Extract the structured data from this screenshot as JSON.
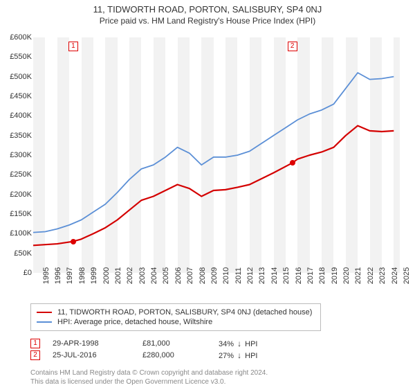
{
  "title": "11, TIDWORTH ROAD, PORTON, SALISBURY, SP4 0NJ",
  "subtitle": "Price paid vs. HM Land Registry's House Price Index (HPI)",
  "chart": {
    "type": "line",
    "background_color_odd": "#f2f2f2",
    "background_color_even": "#ffffff",
    "x_years": [
      1995,
      1996,
      1997,
      1998,
      1999,
      2000,
      2001,
      2002,
      2003,
      2004,
      2005,
      2006,
      2007,
      2008,
      2009,
      2010,
      2011,
      2012,
      2013,
      2014,
      2015,
      2016,
      2017,
      2018,
      2019,
      2020,
      2021,
      2022,
      2023,
      2024,
      2025
    ],
    "xlim_start": 1995,
    "xlim_end": 2025.5,
    "ylim": [
      0,
      600
    ],
    "ytick_step": 50,
    "yticks": [
      "£0",
      "£50K",
      "£100K",
      "£150K",
      "£200K",
      "£250K",
      "£300K",
      "£350K",
      "£400K",
      "£450K",
      "£500K",
      "£550K",
      "£600K"
    ],
    "series": [
      {
        "name": "property",
        "color": "#d40000",
        "width": 2.2,
        "points": [
          [
            1995,
            70
          ],
          [
            1996,
            72
          ],
          [
            1997,
            74
          ],
          [
            1998.3,
            80
          ],
          [
            1999,
            86
          ],
          [
            2000,
            100
          ],
          [
            2001,
            115
          ],
          [
            2002,
            135
          ],
          [
            2003,
            160
          ],
          [
            2004,
            185
          ],
          [
            2005,
            195
          ],
          [
            2006,
            210
          ],
          [
            2007,
            225
          ],
          [
            2008,
            215
          ],
          [
            2009,
            195
          ],
          [
            2010,
            210
          ],
          [
            2011,
            212
          ],
          [
            2012,
            218
          ],
          [
            2013,
            225
          ],
          [
            2014,
            240
          ],
          [
            2015,
            255
          ],
          [
            2016.55,
            280
          ],
          [
            2017,
            290
          ],
          [
            2018,
            300
          ],
          [
            2019,
            308
          ],
          [
            2020,
            320
          ],
          [
            2021,
            350
          ],
          [
            2022,
            375
          ],
          [
            2023,
            362
          ],
          [
            2024,
            360
          ],
          [
            2025,
            362
          ]
        ]
      },
      {
        "name": "hpi",
        "color": "#5b8fd6",
        "width": 1.8,
        "points": [
          [
            1995,
            103
          ],
          [
            1996,
            105
          ],
          [
            1997,
            112
          ],
          [
            1998,
            122
          ],
          [
            1999,
            135
          ],
          [
            2000,
            155
          ],
          [
            2001,
            175
          ],
          [
            2002,
            205
          ],
          [
            2003,
            238
          ],
          [
            2004,
            265
          ],
          [
            2005,
            275
          ],
          [
            2006,
            295
          ],
          [
            2007,
            320
          ],
          [
            2008,
            305
          ],
          [
            2009,
            275
          ],
          [
            2010,
            295
          ],
          [
            2011,
            295
          ],
          [
            2012,
            300
          ],
          [
            2013,
            310
          ],
          [
            2014,
            330
          ],
          [
            2015,
            350
          ],
          [
            2016,
            370
          ],
          [
            2017,
            390
          ],
          [
            2018,
            405
          ],
          [
            2019,
            415
          ],
          [
            2020,
            430
          ],
          [
            2021,
            470
          ],
          [
            2022,
            510
          ],
          [
            2023,
            493
          ],
          [
            2024,
            495
          ],
          [
            2025,
            500
          ]
        ]
      }
    ],
    "markers": [
      {
        "id": "1",
        "year": 1998.33,
        "value": 80
      },
      {
        "id": "2",
        "year": 2016.56,
        "value": 280
      }
    ]
  },
  "legend": {
    "items": [
      {
        "color": "#d40000",
        "label": "11, TIDWORTH ROAD, PORTON, SALISBURY, SP4 0NJ (detached house)"
      },
      {
        "color": "#5b8fd6",
        "label": "HPI: Average price, detached house, Wiltshire"
      }
    ]
  },
  "transactions": [
    {
      "id": "1",
      "date": "29-APR-1998",
      "price": "£81,000",
      "pct": "34%",
      "suffix": "HPI"
    },
    {
      "id": "2",
      "date": "25-JUL-2016",
      "price": "£280,000",
      "pct": "27%",
      "suffix": "HPI"
    }
  ],
  "footer": {
    "line1": "Contains HM Land Registry data © Crown copyright and database right 2024.",
    "line2": "This data is licensed under the Open Government Licence v3.0."
  }
}
